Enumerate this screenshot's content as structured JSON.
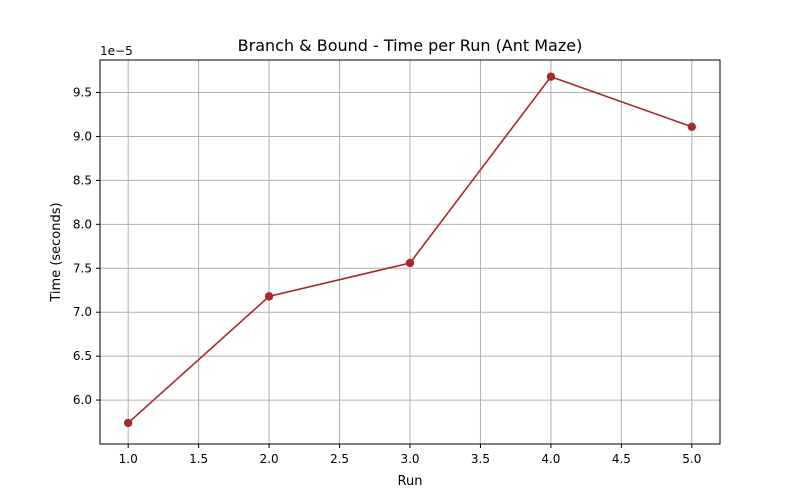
{
  "chart_data": {
    "type": "line",
    "title": "Branch & Bound - Time per Run (Ant Maze)",
    "xlabel": "Run",
    "ylabel": "Time (seconds)",
    "y_offset_label": "1e−5",
    "xlim": [
      0.8,
      5.2
    ],
    "ylim": [
      5.5,
      9.87
    ],
    "x_ticks": [
      1.0,
      1.5,
      2.0,
      2.5,
      3.0,
      3.5,
      4.0,
      4.5,
      5.0
    ],
    "x_tick_labels": [
      "1.0",
      "1.5",
      "2.0",
      "2.5",
      "3.0",
      "3.5",
      "4.0",
      "4.5",
      "5.0"
    ],
    "y_ticks": [
      6.0,
      6.5,
      7.0,
      7.5,
      8.0,
      8.5,
      9.0,
      9.5
    ],
    "y_tick_labels": [
      "6.0",
      "6.5",
      "7.0",
      "7.5",
      "8.0",
      "8.5",
      "9.0",
      "9.5"
    ],
    "grid": true,
    "series": [
      {
        "color": "#a52a2a",
        "marker": "circle",
        "x": [
          1,
          2,
          3,
          4,
          5
        ],
        "y": [
          5.74,
          7.18,
          7.56,
          9.68,
          9.11
        ]
      }
    ]
  }
}
